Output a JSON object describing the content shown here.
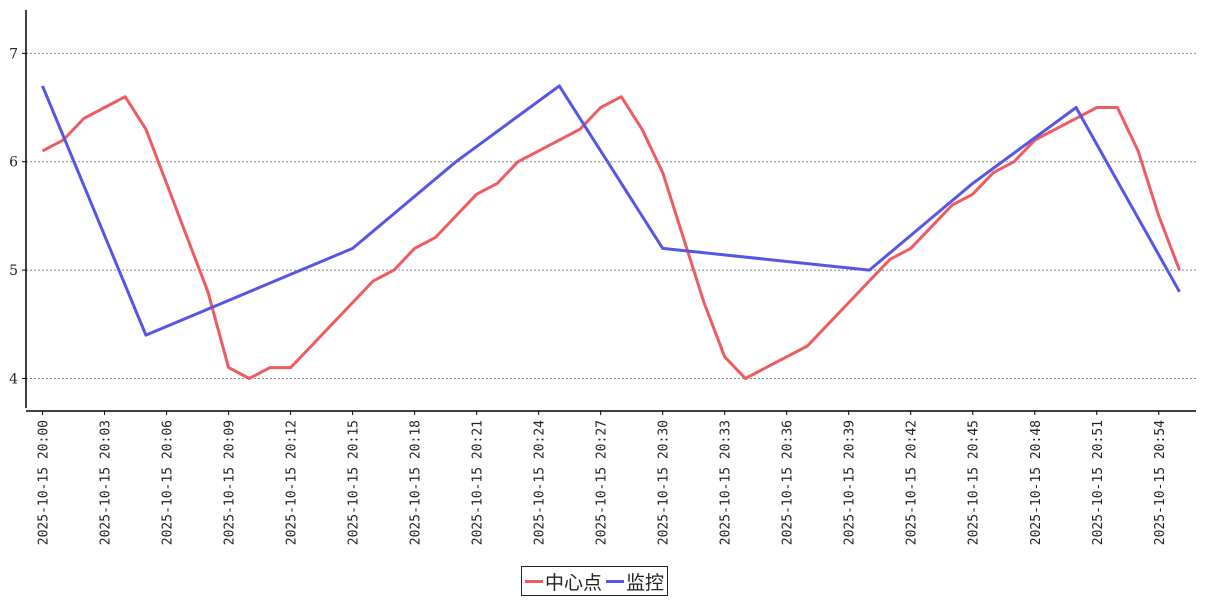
{
  "chart_data": {
    "type": "line",
    "title": "",
    "xlabel": "",
    "ylabel": "",
    "ylim": [
      3.7,
      7.4
    ],
    "yticks": [
      4,
      5,
      6,
      7
    ],
    "ytick_labels": [
      "4",
      "5",
      "6",
      "7"
    ],
    "xlim": [
      -0.8,
      55.8
    ],
    "xticks": [
      0,
      3,
      6,
      9,
      12,
      15,
      18,
      21,
      24,
      27,
      30,
      33,
      36,
      39,
      42,
      45,
      48,
      51,
      54
    ],
    "xtick_labels": [
      "2025-10-15 20:00",
      "2025-10-15 20:03",
      "2025-10-15 20:06",
      "2025-10-15 20:09",
      "2025-10-15 20:12",
      "2025-10-15 20:15",
      "2025-10-15 20:18",
      "2025-10-15 20:21",
      "2025-10-15 20:24",
      "2025-10-15 20:27",
      "2025-10-15 20:30",
      "2025-10-15 20:33",
      "2025-10-15 20:36",
      "2025-10-15 20:39",
      "2025-10-15 20:42",
      "2025-10-15 20:45",
      "2025-10-15 20:48",
      "2025-10-15 20:51",
      "2025-10-15 20:54"
    ],
    "grid": "horizontal-dashed",
    "legend_position": "bottom-center",
    "series": [
      {
        "name": "中心点",
        "color": "#ee5c5f",
        "x": [
          "2025-10-15 20:00",
          "2025-10-15 20:01",
          "2025-10-15 20:02",
          "2025-10-15 20:03",
          "2025-10-15 20:04",
          "2025-10-15 20:05",
          "2025-10-15 20:06",
          "2025-10-15 20:07",
          "2025-10-15 20:08",
          "2025-10-15 20:09",
          "2025-10-15 20:10",
          "2025-10-15 20:11",
          "2025-10-15 20:12",
          "2025-10-15 20:13",
          "2025-10-15 20:14",
          "2025-10-15 20:15",
          "2025-10-15 20:16",
          "2025-10-15 20:17",
          "2025-10-15 20:18",
          "2025-10-15 20:19",
          "2025-10-15 20:20",
          "2025-10-15 20:21",
          "2025-10-15 20:22",
          "2025-10-15 20:23",
          "2025-10-15 20:24",
          "2025-10-15 20:25",
          "2025-10-15 20:26",
          "2025-10-15 20:27",
          "2025-10-15 20:28",
          "2025-10-15 20:29",
          "2025-10-15 20:30",
          "2025-10-15 20:31",
          "2025-10-15 20:32",
          "2025-10-15 20:33",
          "2025-10-15 20:34",
          "2025-10-15 20:35",
          "2025-10-15 20:36",
          "2025-10-15 20:37",
          "2025-10-15 20:38",
          "2025-10-15 20:39",
          "2025-10-15 20:40",
          "2025-10-15 20:41",
          "2025-10-15 20:42",
          "2025-10-15 20:43",
          "2025-10-15 20:44",
          "2025-10-15 20:45",
          "2025-10-15 20:46",
          "2025-10-15 20:47",
          "2025-10-15 20:48",
          "2025-10-15 20:49",
          "2025-10-15 20:50",
          "2025-10-15 20:51",
          "2025-10-15 20:52",
          "2025-10-15 20:53",
          "2025-10-15 20:54",
          "2025-10-15 20:55"
        ],
        "values": [
          6.1,
          6.2,
          6.4,
          6.5,
          6.6,
          6.3,
          5.8,
          5.3,
          4.8,
          4.1,
          4.0,
          4.1,
          4.1,
          4.3,
          4.5,
          4.7,
          4.9,
          5.0,
          5.2,
          5.3,
          5.5,
          5.7,
          5.8,
          6.0,
          6.1,
          6.2,
          6.3,
          6.5,
          6.6,
          6.3,
          5.9,
          5.3,
          4.7,
          4.2,
          4.0,
          4.1,
          4.2,
          4.3,
          4.5,
          4.7,
          4.9,
          5.1,
          5.2,
          5.4,
          5.6,
          5.7,
          5.9,
          6.0,
          6.2,
          6.3,
          6.4,
          6.5,
          6.5,
          6.1,
          5.5,
          5.0
        ]
      },
      {
        "name": "监控",
        "color": "#5656e6",
        "x": [
          "2025-10-15 20:00",
          "2025-10-15 20:05",
          "2025-10-15 20:15",
          "2025-10-15 20:20",
          "2025-10-15 20:25",
          "2025-10-15 20:30",
          "2025-10-15 20:40",
          "2025-10-15 20:45",
          "2025-10-15 20:50",
          "2025-10-15 20:55"
        ],
        "values": [
          6.7,
          4.4,
          5.2,
          6.0,
          6.7,
          5.2,
          5.0,
          5.8,
          6.5,
          4.8
        ]
      }
    ]
  }
}
